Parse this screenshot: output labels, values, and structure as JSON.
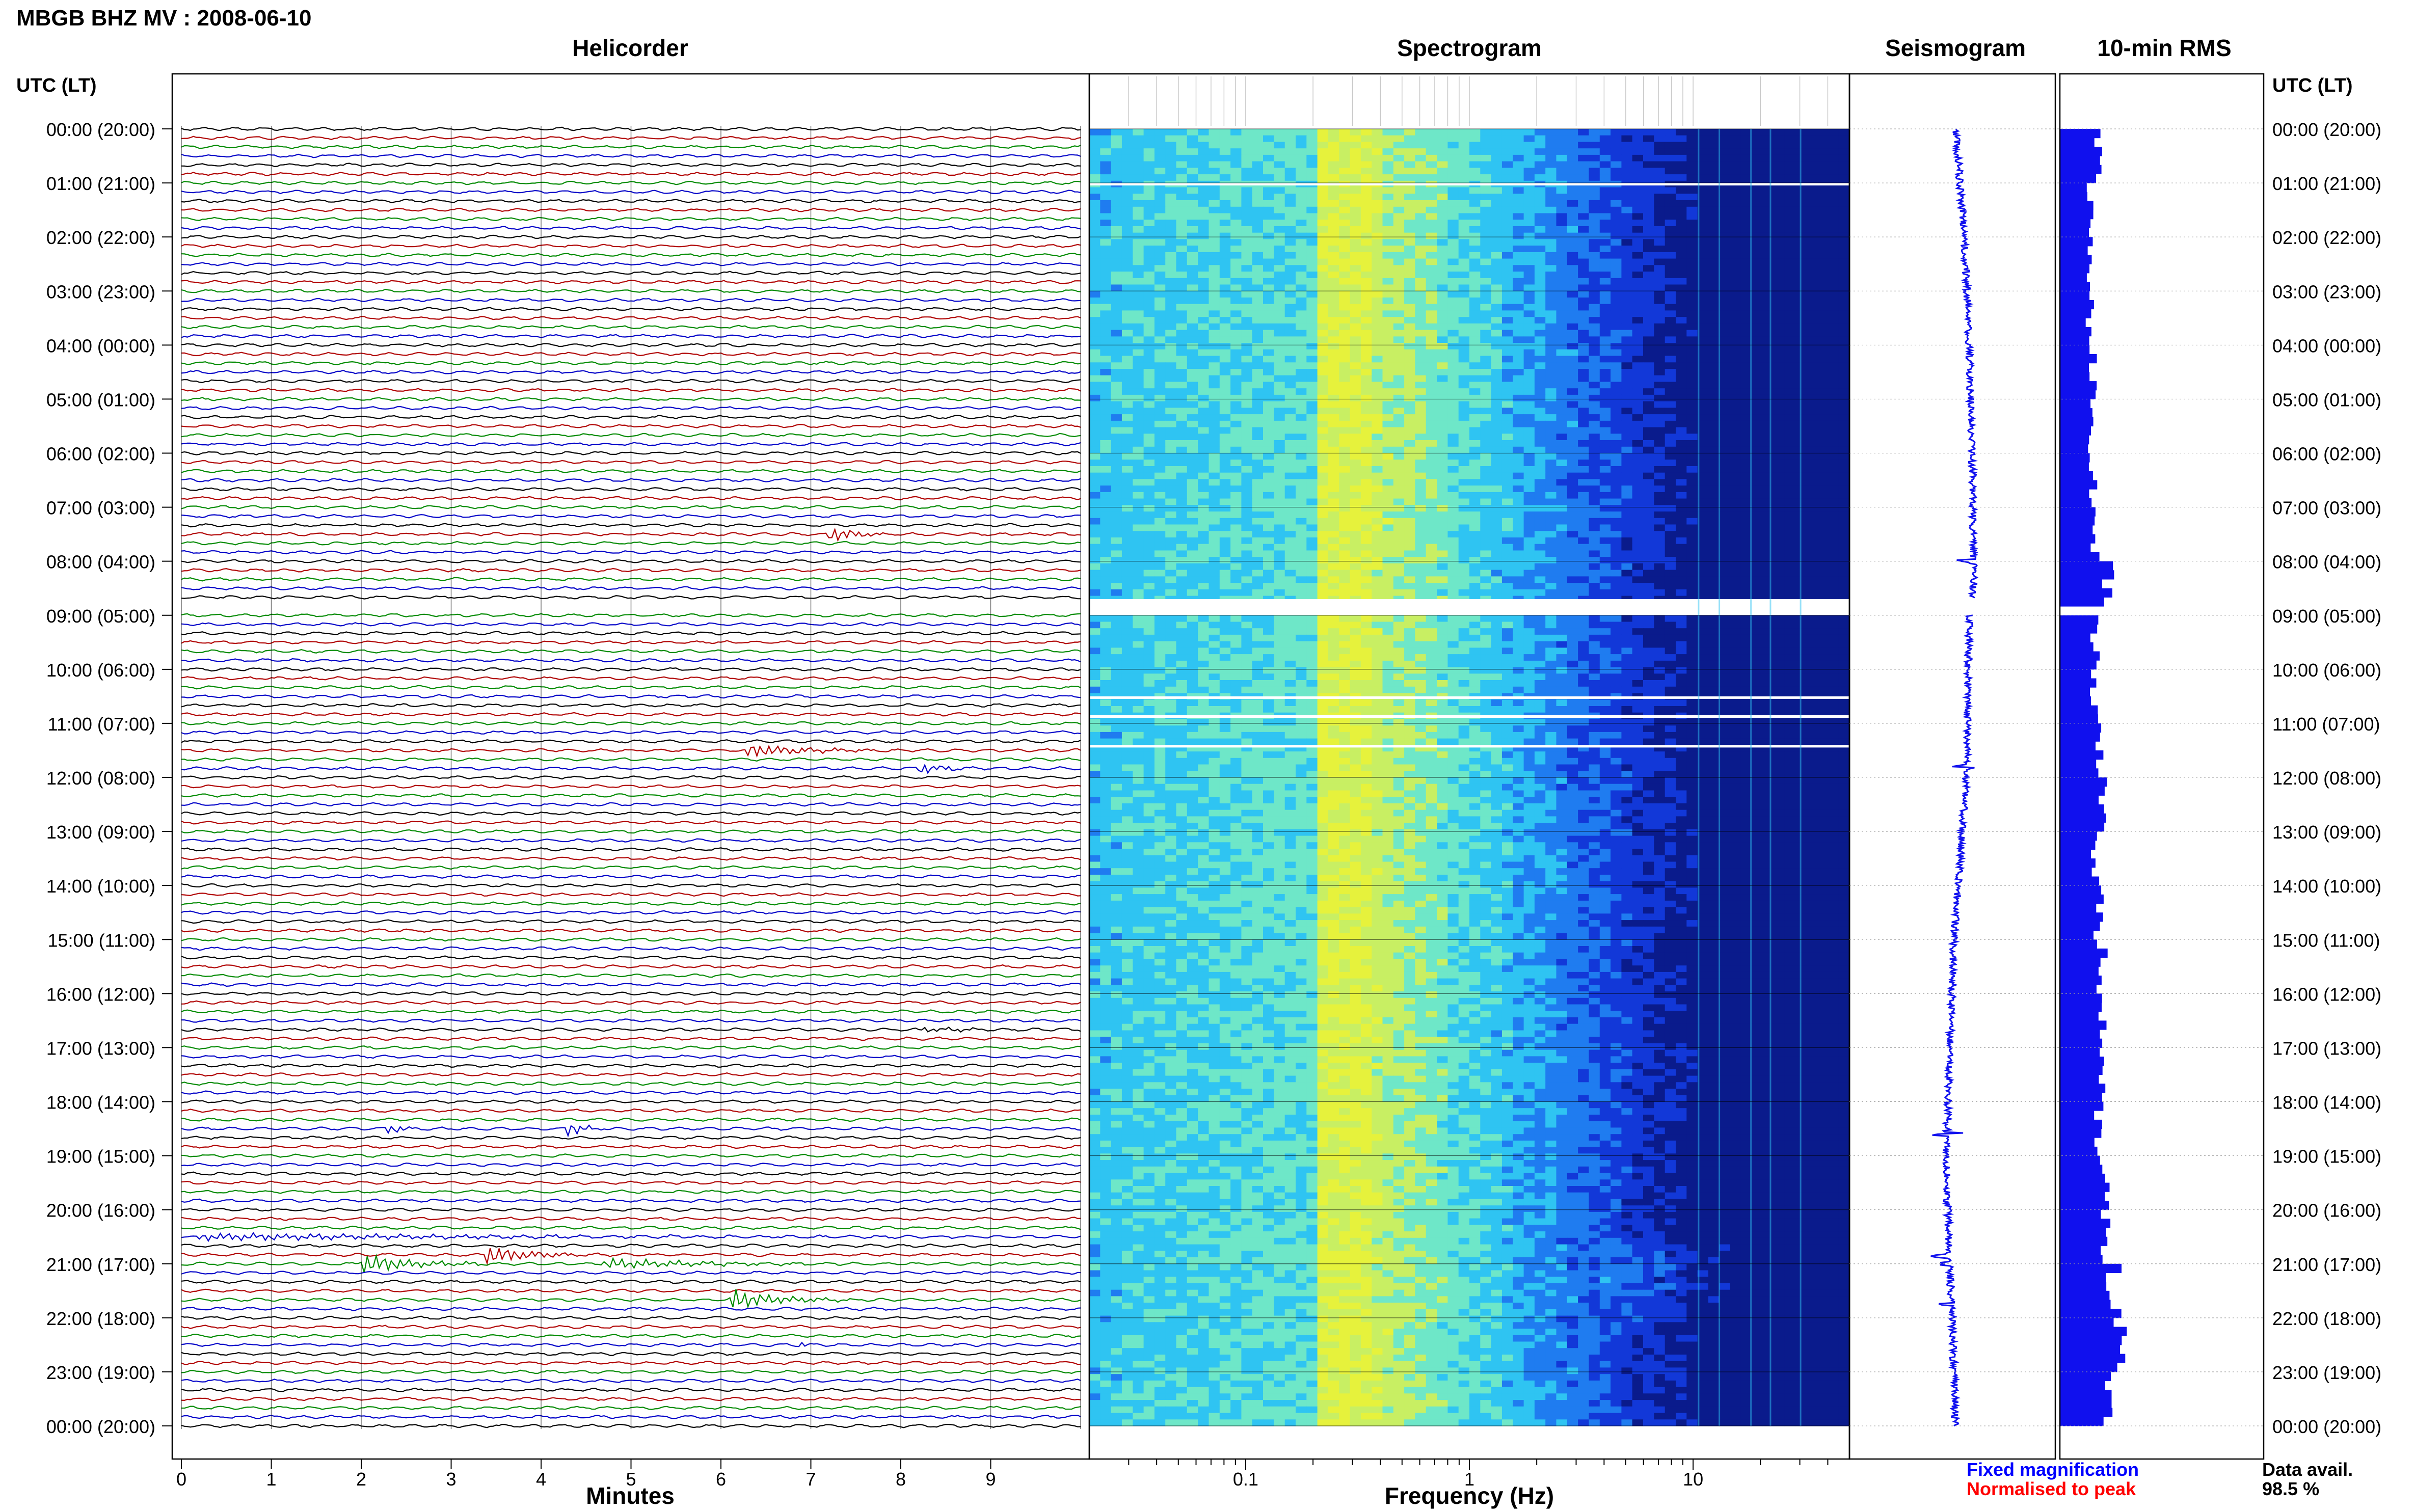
{
  "header": {
    "title": "MBGB BHZ MV : 2008-06-10",
    "panel_titles": {
      "helicorder": "Helicorder",
      "spectrogram": "Spectrogram",
      "seismogram": "Seismogram",
      "rms": "10-min RMS"
    },
    "utc_label": "UTC (LT)"
  },
  "chart_data": [
    {
      "type": "line",
      "panel": "helicorder",
      "title": "Helicorder",
      "xlabel": "Minutes",
      "x_ticks": [
        "0",
        "1",
        "2",
        "3",
        "4",
        "5",
        "6",
        "7",
        "8",
        "9"
      ],
      "xlim": [
        0,
        10
      ],
      "rows_per_hour": 6,
      "trace_colors": [
        "#000000",
        "#b00000",
        "#008a00",
        "#0000c8"
      ],
      "time_labels": [
        "00:00 (20:00)",
        "01:00 (21:00)",
        "02:00 (22:00)",
        "03:00 (23:00)",
        "04:00 (00:00)",
        "05:00 (01:00)",
        "06:00 (02:00)",
        "07:00 (03:00)",
        "08:00 (04:00)",
        "09:00 (05:00)",
        "10:00 (06:00)",
        "11:00 (07:00)",
        "12:00 (08:00)",
        "13:00 (09:00)",
        "14:00 (10:00)",
        "15:00 (11:00)",
        "16:00 (12:00)",
        "17:00 (13:00)",
        "18:00 (14:00)",
        "19:00 (15:00)",
        "20:00 (16:00)",
        "21:00 (17:00)",
        "22:00 (18:00)",
        "23:00 (19:00)",
        "00:00 (20:00)"
      ],
      "gaps_hours": [
        [
          8.7,
          9.0
        ]
      ],
      "events": [
        {
          "hour": 3.3,
          "minute": 7.45,
          "dur": 0.1,
          "amp": 4
        },
        {
          "hour": 7.55,
          "minute": 7.2,
          "dur": 0.8,
          "amp": 10
        },
        {
          "hour": 11.5,
          "minute": 6.3,
          "dur": 1.8,
          "amp": 8
        },
        {
          "hour": 11.8,
          "minute": 8.2,
          "dur": 0.7,
          "amp": 7
        },
        {
          "hour": 16.65,
          "minute": 8.2,
          "dur": 1.2,
          "amp": 3
        },
        {
          "hour": 18.45,
          "minute": 2.3,
          "dur": 0.6,
          "amp": 5
        },
        {
          "hour": 18.45,
          "minute": 4.3,
          "dur": 0.5,
          "amp": 9
        },
        {
          "hour": 20.5,
          "minute": 0.2,
          "dur": 9.0,
          "amp": 4
        },
        {
          "hour": 20.85,
          "minute": 3.4,
          "dur": 1.4,
          "amp": 11
        },
        {
          "hour": 20.95,
          "minute": 2.0,
          "dur": 1.6,
          "amp": 12
        },
        {
          "hour": 20.95,
          "minute": 4.7,
          "dur": 3.0,
          "amp": 6
        },
        {
          "hour": 21.65,
          "minute": 6.1,
          "dur": 1.4,
          "amp": 13
        },
        {
          "hour": 22.5,
          "minute": 6.9,
          "dur": 0.2,
          "amp": 3
        }
      ]
    },
    {
      "type": "heatmap",
      "panel": "spectrogram",
      "title": "Spectrogram",
      "xlabel": "Frequency (Hz)",
      "x_scale": "log",
      "xlim": [
        0.02,
        50
      ],
      "x_tick_labels": [
        "0.1",
        "1",
        "10"
      ],
      "colormap": [
        "#0a1b8c",
        "#1238d8",
        "#1f7cf0",
        "#2fc4f2",
        "#6ee7c8",
        "#c8ef63",
        "#e6f23c"
      ],
      "gaps_hours": [
        [
          8.7,
          9.0
        ],
        [
          1.0,
          1.02
        ],
        [
          10.5,
          10.52
        ],
        [
          10.85,
          10.87
        ],
        [
          11.4,
          11.42
        ]
      ],
      "peak_band_hz": [
        0.2,
        0.35
      ]
    },
    {
      "type": "line",
      "panel": "seismogram",
      "title": "Seismogram",
      "gaps_hours": [
        [
          8.7,
          9.0
        ]
      ],
      "baseline_drift": [
        [
          0,
          0.0
        ],
        [
          2,
          0.3
        ],
        [
          4,
          0.45
        ],
        [
          6,
          0.55
        ],
        [
          8.5,
          0.6
        ],
        [
          9,
          0.45
        ],
        [
          12,
          0.35
        ],
        [
          15,
          -0.05
        ],
        [
          18,
          -0.25
        ],
        [
          19,
          -0.3
        ],
        [
          21,
          -0.2
        ],
        [
          22,
          -0.1
        ],
        [
          24,
          0.0
        ]
      ],
      "spikes_hours": [
        8.0,
        11.8,
        18.6,
        20.85,
        21.0,
        21.75
      ]
    },
    {
      "type": "bar",
      "panel": "rms",
      "title": "10-min RMS",
      "orientation": "horizontal",
      "bar_color": "#1010ee",
      "gaps_hours": [
        [
          8.7,
          9.0
        ]
      ],
      "values_by_hour": [
        0.45,
        0.35,
        0.35,
        0.35,
        0.38,
        0.38,
        0.38,
        0.4,
        0.55,
        0.4,
        0.4,
        0.45,
        0.5,
        0.42,
        0.45,
        0.48,
        0.48,
        0.52,
        0.45,
        0.5,
        0.55,
        0.62,
        0.7,
        0.55,
        0.5
      ]
    }
  ],
  "legend": {
    "fixed": "Fixed magnification",
    "normalised": "Normalised to peak",
    "fixed_color": "#0000ff",
    "normalised_color": "#ff0000"
  },
  "data_avail": {
    "label": "Data avail.",
    "value": "98.5 %"
  }
}
